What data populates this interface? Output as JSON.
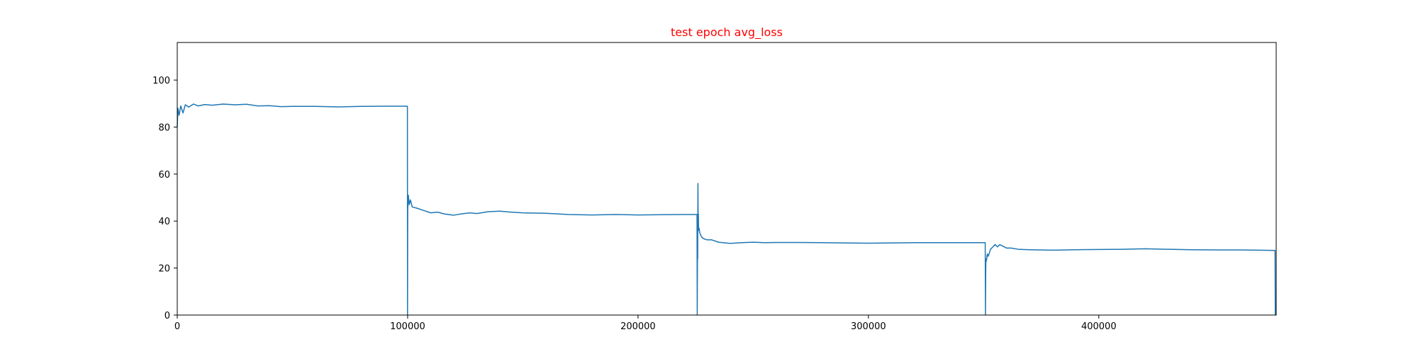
{
  "chart_data": {
    "type": "line",
    "title": "test epoch avg_loss",
    "xlabel": "",
    "ylabel": "",
    "xlim": [
      0,
      477000
    ],
    "ylim": [
      0,
      116
    ],
    "grid": false,
    "legend": "none",
    "x_ticks": [
      0,
      100000,
      200000,
      300000,
      400000
    ],
    "x_tick_labels": [
      "0",
      "100000",
      "200000",
      "300000",
      "400000"
    ],
    "y_ticks": [
      0,
      20,
      40,
      60,
      80,
      100
    ],
    "y_tick_labels": [
      "0",
      "20",
      "40",
      "60",
      "80",
      "100"
    ],
    "colors": {
      "title": "#ff0000",
      "series": "#1f77b4",
      "axes": "#000000"
    },
    "series": [
      {
        "x": [
          0,
          300,
          800,
          1500,
          2500,
          3500,
          5000,
          7000,
          9000,
          12000,
          15000,
          20000,
          25000,
          30000,
          35000,
          40000,
          45000,
          50000,
          60000,
          70000,
          80000,
          90000,
          99900,
          99950,
          100000,
          100050,
          100300,
          100700,
          101200,
          102000,
          104000,
          107000,
          110000,
          113000,
          116000,
          120000,
          123000,
          127000,
          130000,
          135000,
          140000,
          145000,
          150000,
          160000,
          170000,
          180000,
          190000,
          200000,
          210000,
          220000,
          225600,
          225700,
          225800,
          225900,
          226000,
          226100,
          226200,
          226300,
          226500,
          226800,
          227200,
          227800,
          228500,
          230000,
          232000,
          235000,
          240000,
          245000,
          250000,
          255000,
          260000,
          270000,
          280000,
          290000,
          300000,
          310000,
          320000,
          330000,
          340000,
          350700,
          350800,
          350900,
          351000,
          351200,
          351600,
          352000,
          353000,
          354000,
          355000,
          356000,
          357000,
          358000,
          360000,
          362000,
          365000,
          370000,
          380000,
          390000,
          400000,
          410000,
          420000,
          430000,
          440000,
          450000,
          460000,
          470000,
          476500,
          476600
        ],
        "y": [
          80,
          88,
          85,
          89,
          86,
          89.5,
          88.5,
          89.8,
          89,
          89.6,
          89.3,
          89.8,
          89.5,
          89.7,
          89,
          89.1,
          88.7,
          88.8,
          88.8,
          88.6,
          88.8,
          88.9,
          88.9,
          0,
          30,
          45,
          51,
          47,
          49,
          46,
          45.5,
          44.5,
          43.5,
          43.8,
          43,
          42.5,
          43,
          43.5,
          43.2,
          44,
          44.2,
          43.8,
          43.5,
          43.3,
          42.8,
          42.6,
          42.8,
          42.6,
          42.7,
          42.8,
          42.8,
          0,
          25,
          24,
          56,
          40,
          43,
          36,
          37,
          35,
          34,
          33,
          32.5,
          32,
          32,
          31,
          30.5,
          30.8,
          31,
          30.8,
          30.9,
          30.9,
          30.8,
          30.7,
          30.6,
          30.7,
          30.8,
          30.8,
          30.8,
          30.8,
          0,
          17,
          24,
          23,
          26,
          25,
          28,
          29,
          30,
          29,
          30,
          29.5,
          28.5,
          28.5,
          28,
          27.8,
          27.6,
          27.8,
          27.9,
          28,
          28.2,
          28,
          27.8,
          27.7,
          27.7,
          27.6,
          27.5,
          0
        ]
      }
    ]
  }
}
